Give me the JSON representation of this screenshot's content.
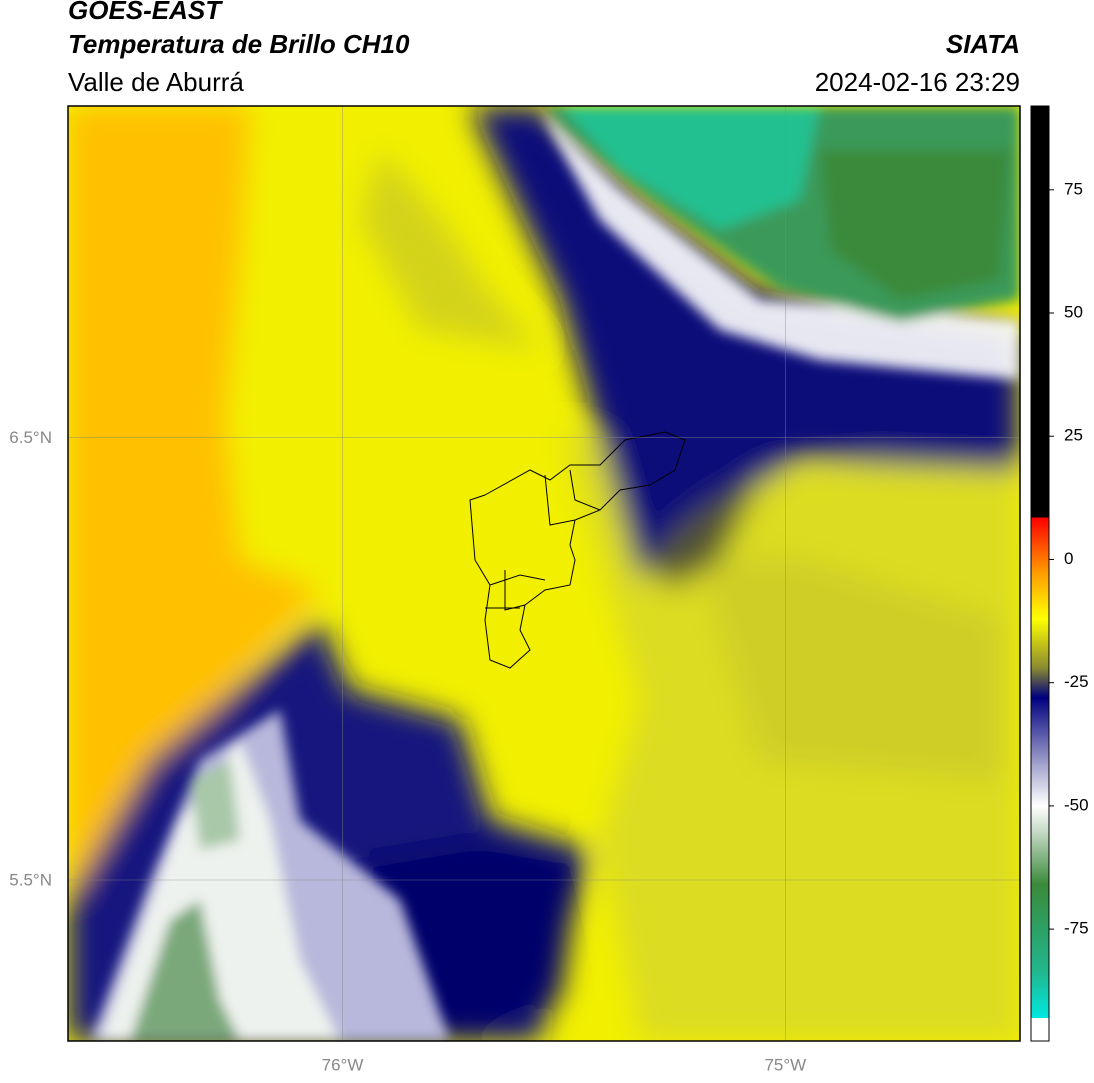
{
  "header": {
    "title": "GOES-EAST",
    "subtitle": "Temperatura de Brillo CH10",
    "region": "Valle de Aburrá",
    "agency": "SIATA",
    "datetime": "2024-02-16 23:29"
  },
  "map": {
    "xlim": [
      -76.62,
      -74.47
    ],
    "ylim": [
      5.136,
      7.25
    ],
    "xticks": [
      {
        "value": -76,
        "label": "76°W"
      },
      {
        "value": -75,
        "label": "75°W"
      }
    ],
    "yticks": [
      {
        "value": 6.5,
        "label": "6.5°N"
      },
      {
        "value": 5.5,
        "label": "5.5°N"
      }
    ],
    "grid": true
  },
  "colorbar": {
    "lim": [
      -97.7,
      92
    ],
    "ticks": [
      75,
      50,
      25,
      0,
      -25,
      -50,
      -75
    ],
    "stops": [
      {
        "value": -97.7,
        "color": "#ffffff"
      },
      {
        "value": -93,
        "color": "#ffffff"
      },
      {
        "value": -93,
        "color": "#00e8e0"
      },
      {
        "value": -84,
        "color": "#20b890"
      },
      {
        "value": -66,
        "color": "#3a8a3a"
      },
      {
        "value": -55,
        "color": "#c8dcc8"
      },
      {
        "value": -50,
        "color": "#ffffff"
      },
      {
        "value": -42,
        "color": "#a8a8d0"
      },
      {
        "value": -28,
        "color": "#00007f"
      },
      {
        "value": -22,
        "color": "#8a8a30"
      },
      {
        "value": -12,
        "color": "#ffff00"
      },
      {
        "value": -3,
        "color": "#ffa000"
      },
      {
        "value": 8.5,
        "color": "#ff0000"
      },
      {
        "value": 8.5,
        "color": "#000000"
      },
      {
        "value": 92,
        "color": "#000000"
      }
    ]
  }
}
